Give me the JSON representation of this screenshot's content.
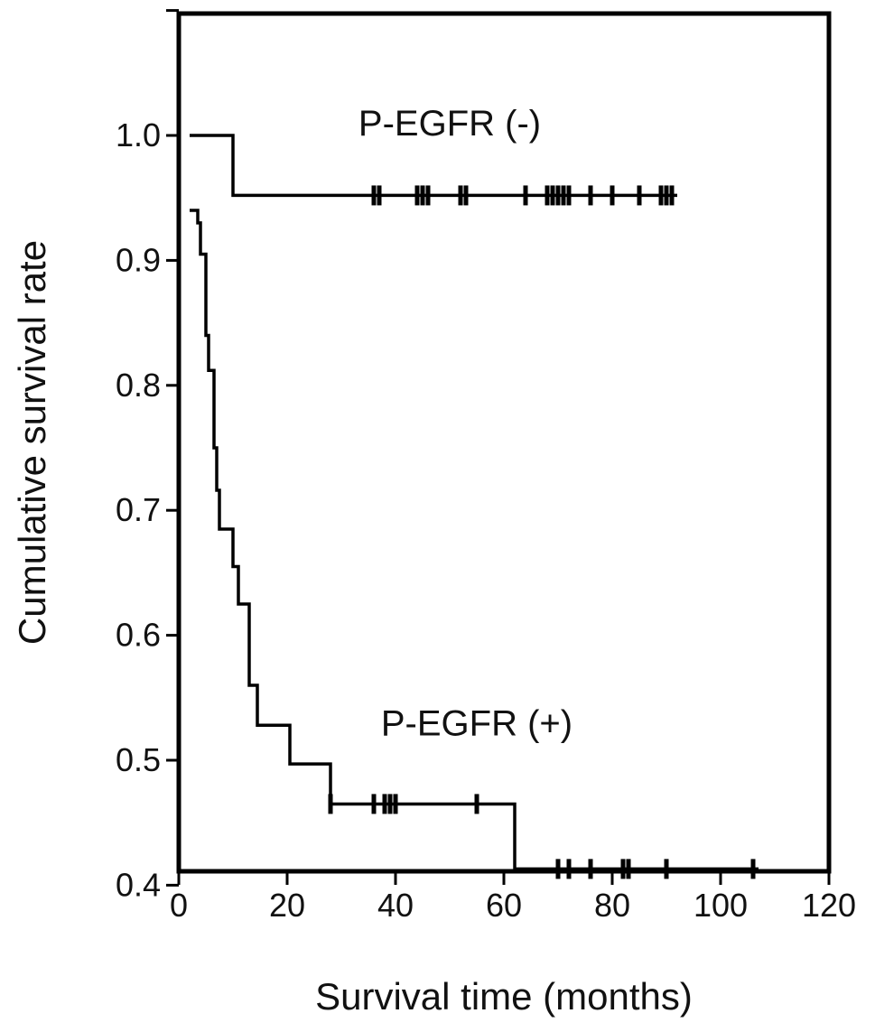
{
  "chart_data": {
    "type": "line",
    "subtype": "kaplan-meier step survival curve",
    "title": "",
    "xlabel": "Survival time (months)",
    "ylabel": "Cumulative survival rate",
    "xlim": [
      0,
      120
    ],
    "ylim": [
      0.4,
      1.1
    ],
    "x_ticks": [
      "0",
      "20",
      "40",
      "60",
      "80",
      "100",
      "120"
    ],
    "y_ticks": [
      "0.4",
      "0.5",
      "0.6",
      "0.7",
      "0.8",
      "0.9",
      "1.0"
    ],
    "grid": false,
    "legend": "none",
    "series": [
      {
        "label": "P-EGFR (-)",
        "label_at": {
          "x": 50,
          "y": 1.0
        },
        "steps": [
          [
            2,
            1.0
          ],
          [
            10,
            0.952
          ],
          [
            92,
            0.952
          ]
        ],
        "censored": [
          36,
          37,
          44,
          45,
          46,
          52,
          53,
          64,
          68,
          69,
          70,
          71,
          72,
          76,
          80,
          85,
          89,
          90,
          91
        ]
      },
      {
        "label": "P-EGFR (+)",
        "label_at": {
          "x": 55,
          "y": 0.52
        },
        "steps": [
          [
            2,
            0.94
          ],
          [
            3.5,
            0.93
          ],
          [
            4,
            0.905
          ],
          [
            5,
            0.84
          ],
          [
            5.5,
            0.812
          ],
          [
            6.5,
            0.75
          ],
          [
            7,
            0.716
          ],
          [
            7.5,
            0.685
          ],
          [
            10,
            0.655
          ],
          [
            11,
            0.625
          ],
          [
            13,
            0.56
          ],
          [
            14.5,
            0.528
          ],
          [
            20.5,
            0.497
          ],
          [
            28,
            0.465
          ],
          [
            62,
            0.413
          ],
          [
            107,
            0.413
          ]
        ],
        "censored": [
          28,
          36,
          38,
          39,
          40,
          55,
          70,
          72,
          76,
          82,
          83,
          90,
          106
        ]
      }
    ]
  }
}
